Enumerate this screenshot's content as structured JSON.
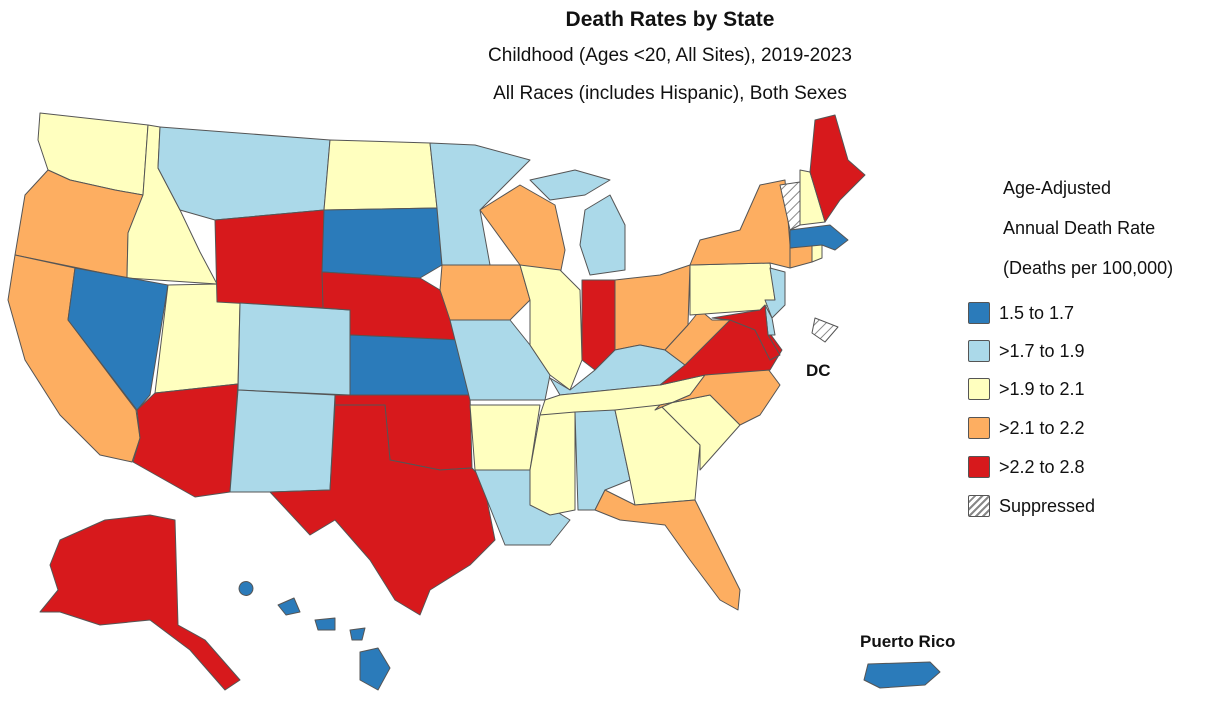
{
  "title": "Death Rates by State",
  "subtitle_1": "Childhood (Ages <20, All Sites), 2019-2023",
  "subtitle_2": "All Races (includes Hispanic), Both Sexes",
  "legend": {
    "title_lines": [
      "Age-Adjusted",
      "Annual Death Rate",
      "(Deaths per 100,000)"
    ],
    "items": [
      {
        "key": "c1",
        "label": "1.5 to 1.7",
        "color": "#2b7bba"
      },
      {
        "key": "c2",
        "label": ">1.7 to 1.9",
        "color": "#abd9e9"
      },
      {
        "key": "c3",
        "label": ">1.9 to 2.1",
        "color": "#ffffbf"
      },
      {
        "key": "c4",
        "label": ">2.1 to 2.2",
        "color": "#fdae61"
      },
      {
        "key": "c5",
        "label": ">2.2 to 2.8",
        "color": "#d7191c"
      },
      {
        "key": "sup",
        "label": "Suppressed",
        "color": "hatch"
      }
    ]
  },
  "labels": {
    "dc": "DC",
    "pr": "Puerto Rico"
  },
  "states": {
    "WA": "c3",
    "OR": "c4",
    "CA": "c4",
    "ID": "c3",
    "NV": "c1",
    "UT": "c3",
    "AZ": "c5",
    "MT": "c2",
    "WY": "c5",
    "CO": "c2",
    "NM": "c2",
    "ND": "c3",
    "SD": "c1",
    "NE": "c5",
    "KS": "c1",
    "OK": "c5",
    "TX": "c5",
    "MN": "c2",
    "IA": "c4",
    "MO": "c2",
    "AR": "c3",
    "LA": "c2",
    "WI": "c4",
    "IL": "c3",
    "MI": "c2",
    "IN": "c5",
    "OH": "c4",
    "KY": "c2",
    "TN": "c3",
    "MS": "c3",
    "AL": "c2",
    "GA": "c3",
    "FL": "c4",
    "SC": "c3",
    "NC": "c4",
    "VA": "c5",
    "WV": "c4",
    "PA": "c3",
    "NY": "c4",
    "NJ": "c2",
    "DE": "c2",
    "MD": "c5",
    "CT": "c4",
    "RI": "c3",
    "MA": "c1",
    "VT": "sup",
    "NH": "c3",
    "ME": "c5",
    "AK": "c5",
    "HI": "c1",
    "PR": "c1",
    "DC": "sup"
  }
}
